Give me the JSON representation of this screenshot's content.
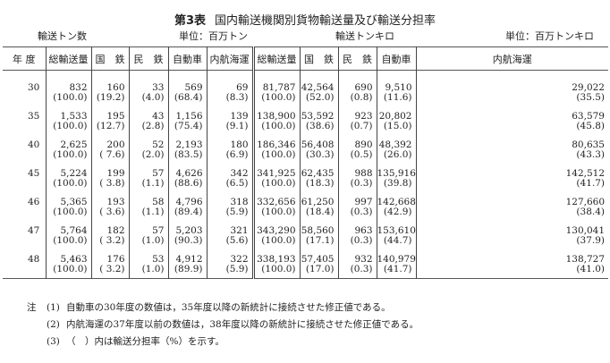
{
  "title": {
    "number": "第3表",
    "text": "国内輸送機関別貨物輸送量及び輸送分担率"
  },
  "subtitles": {
    "left": "輸送トン数",
    "left_unit": "単位：百万トン",
    "right": "輸送トンキロ",
    "right_unit": "単位：百万トンキロ"
  },
  "headers": [
    "年 度",
    "総輸送量",
    "国　鉄",
    "民　鉄",
    "自動車",
    "内航海運",
    "総輸送量",
    "国　鉄",
    "民　鉄",
    "自動車",
    "内航海運"
  ],
  "rows": [
    {
      "year": "30",
      "v": [
        "832",
        "160",
        "33",
        "569",
        "69",
        "81,787",
        "42,564",
        "690",
        "9,510",
        "29,022"
      ],
      "p": [
        "(100.0)",
        "(19.2)",
        "(4.0)",
        "(68.4)",
        "(8.3)",
        "(100.0)",
        "(52.0)",
        "(0.8)",
        "(11.6)",
        "(35.5)"
      ]
    },
    {
      "year": "35",
      "v": [
        "1,533",
        "195",
        "43",
        "1,156",
        "139",
        "138,900",
        "53,592",
        "923",
        "20,802",
        "63,579"
      ],
      "p": [
        "(100.0)",
        "(12.7)",
        "(2.8)",
        "(75.4)",
        "(9.1)",
        "(100.0)",
        "(38.6)",
        "(0.7)",
        "(15.0)",
        "(45.8)"
      ]
    },
    {
      "year": "40",
      "v": [
        "2,625",
        "200",
        "52",
        "2,193",
        "180",
        "186,346",
        "56,408",
        "890",
        "48,392",
        "80,635"
      ],
      "p": [
        "(100.0)",
        "( 7.6)",
        "(2.0)",
        "(83.5)",
        "(6.9)",
        "(100.0)",
        "(30.3)",
        "(0.5)",
        "(26.0)",
        "(43.3)"
      ]
    },
    {
      "year": "45",
      "v": [
        "5,224",
        "199",
        "57",
        "4,626",
        "342",
        "341,925",
        "62,435",
        "988",
        "135,916",
        "142,512"
      ],
      "p": [
        "(100.0)",
        "( 3.8)",
        "(1.1)",
        "(88.6)",
        "(6.5)",
        "(100.0)",
        "(18.3)",
        "(0.3)",
        "(39.8)",
        "(41.7)"
      ]
    },
    {
      "year": "46",
      "v": [
        "5,365",
        "193",
        "58",
        "4,796",
        "318",
        "332,656",
        "61,250",
        "997",
        "142,668",
        "127,660"
      ],
      "p": [
        "(100.0)",
        "( 3.6)",
        "(1.1)",
        "(89.4)",
        "(5.9)",
        "(100.0)",
        "(18.4)",
        "(0.3)",
        "(42.9)",
        "(38.4)"
      ]
    },
    {
      "year": "47",
      "v": [
        "5,764",
        "182",
        "57",
        "5,203",
        "321",
        "343,290",
        "58,560",
        "963",
        "153,610",
        "130,041"
      ],
      "p": [
        "(100.0)",
        "( 3.2)",
        "(1.0)",
        "(90.3)",
        "(5.6)",
        "(100.0)",
        "(17.1)",
        "(0.3)",
        "(44.7)",
        "(37.9)"
      ]
    },
    {
      "year": "48",
      "v": [
        "5,463",
        "176",
        "53",
        "4,912",
        "322",
        "338,193",
        "57,405",
        "932",
        "140,979",
        "138,727"
      ],
      "p": [
        "(100.0)",
        "( 3.2)",
        "(1.0)",
        "(89.9)",
        "(5.9)",
        "(100.0)",
        "(17.0)",
        "(0.3)",
        "(41.7)",
        "(41.0)"
      ]
    }
  ],
  "notes": {
    "label": "注",
    "items": [
      {
        "num": "(1)",
        "text": "自動車の30年度の数値は，35年度以降の新統計に接続させた修正値である。"
      },
      {
        "num": "(2)",
        "text": "内航海運の37年度以前の数値は，38年度以降の新統計に接続させた修正値である。"
      },
      {
        "num": "(3)",
        "text": "（　）内は輸送分担率（%）を示す。"
      }
    ]
  }
}
